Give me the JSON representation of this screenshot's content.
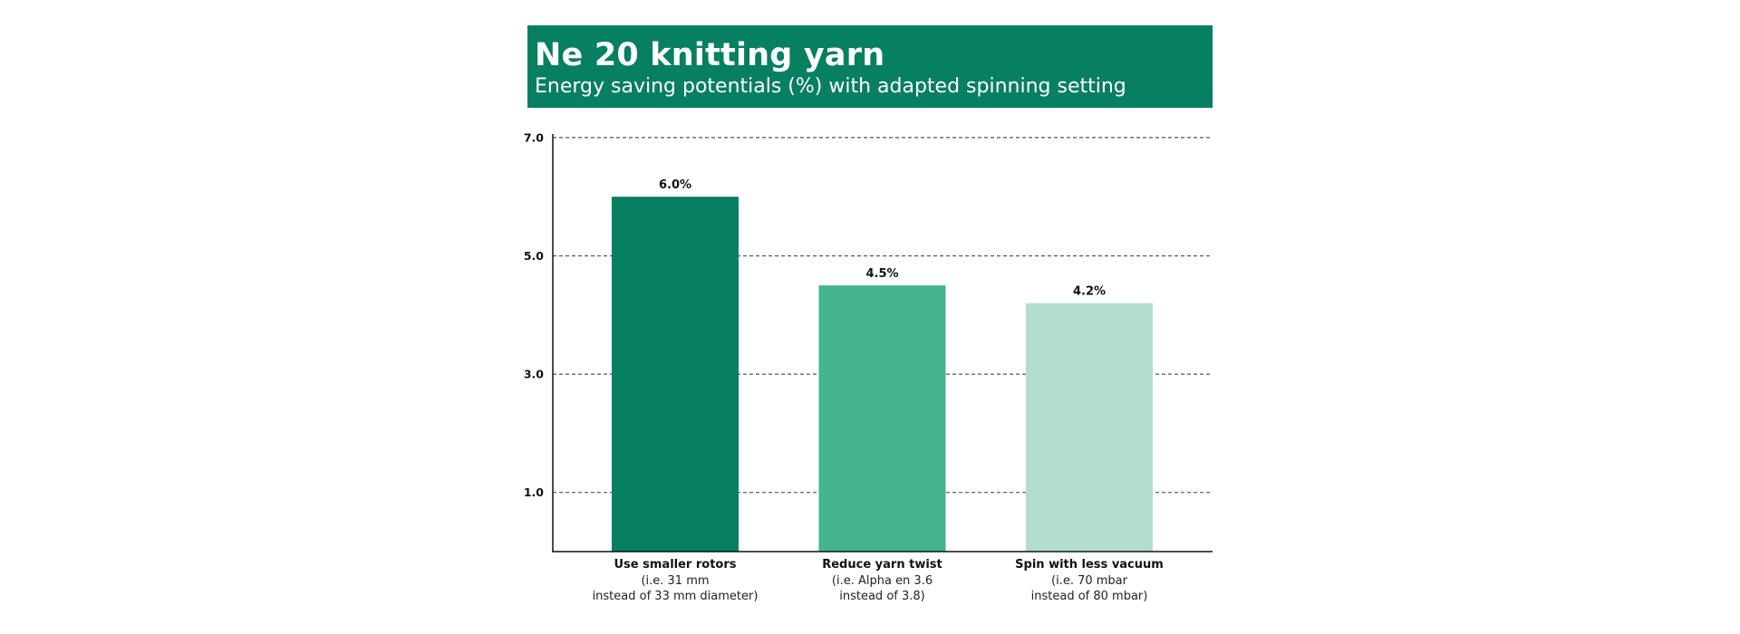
{
  "header": {
    "title": "Ne 20 knitting yarn",
    "subtitle": "Energy saving potentials (%) with adapted spinning setting"
  },
  "colors": {
    "header_bg": "#077f61",
    "bar_1": "#077f61",
    "bar_2": "#43b48f",
    "bar_3": "#b3ddcd",
    "grid": "#555555",
    "axis": "#111111"
  },
  "chart_data": {
    "type": "bar",
    "title": "Ne 20 knitting yarn",
    "subtitle": "Energy saving potentials (%) with adapted spinning setting",
    "xlabel": "",
    "ylabel": "",
    "ylim": [
      0,
      7
    ],
    "yticks": [
      1.0,
      3.0,
      5.0,
      7.0
    ],
    "ytick_labels": [
      "1.0",
      "3.0",
      "5.0",
      "7.0"
    ],
    "grid": "horizontal-dashed",
    "legend": "none",
    "categories": [
      "Use smaller rotors",
      "Reduce yarn twist",
      "Spin with less vacuum"
    ],
    "category_notes": [
      [
        "(i.e. 31 mm",
        "instead of 33 mm diameter)"
      ],
      [
        "(i.e. Alpha en 3.6",
        "instead of 3.8)"
      ],
      [
        "(i.e. 70 mbar",
        "instead of 80 mbar)"
      ]
    ],
    "values": [
      6.0,
      4.5,
      4.2
    ],
    "value_labels": [
      "6.0%",
      "4.5%",
      "4.2%"
    ]
  }
}
